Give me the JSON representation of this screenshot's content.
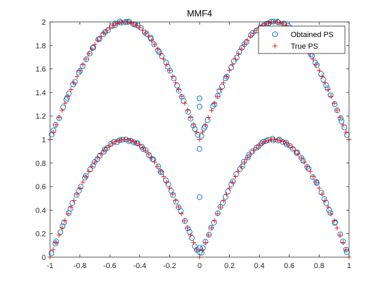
{
  "chart_data": {
    "type": "scatter",
    "title": "MMF4",
    "xlabel": "",
    "ylabel": "",
    "xlim": [
      -1,
      1
    ],
    "ylim": [
      0,
      2
    ],
    "xticks": [
      "-1",
      "-0.8",
      "-0.6",
      "-0.4",
      "-0.2",
      "0",
      "0.2",
      "0.4",
      "0.6",
      "0.8",
      "1"
    ],
    "yticks": [
      "0",
      "0.2",
      "0.4",
      "0.6",
      "0.8",
      "1",
      "1.2",
      "1.4",
      "1.6",
      "1.8",
      "2"
    ],
    "grid": false,
    "legend_position": "top-right",
    "series": [
      {
        "name": "Obtained PS",
        "marker": "circle-open",
        "color": "#0072BD",
        "x_range": [
          -1,
          1
        ],
        "count_per_branch": 110,
        "branches": [
          "y = sin(pi*|x|)",
          "y = 1 + sin(pi*|x|)"
        ],
        "jitter_x": 0.005,
        "outliers": [
          {
            "x": 0.0,
            "y": 1.35
          },
          {
            "x": 0.0,
            "y": 1.28
          },
          {
            "x": 0.0,
            "y": 0.92
          },
          {
            "x": 0.0,
            "y": 0.51
          },
          {
            "x": 0.0,
            "y": 0.08
          },
          {
            "x": 0.0,
            "y": 0.04
          }
        ]
      },
      {
        "name": "True PS",
        "marker": "plus",
        "color": "#FF0000",
        "x_range": [
          -1,
          1
        ],
        "count_per_branch": 100,
        "branches": [
          "y = sin(pi*|x|)",
          "y = 1 + sin(pi*|x|)"
        ]
      }
    ]
  },
  "colors": {
    "obtained": "#0072BD",
    "true": "#FF0000",
    "axes": "#262626"
  }
}
